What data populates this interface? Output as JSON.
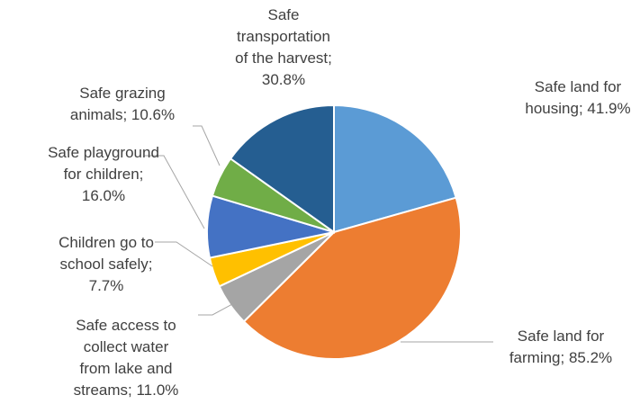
{
  "chart_data": {
    "type": "pie",
    "categories": [
      "Safe land for housing;",
      "Safe land for farming;",
      "Safe access to collect water from lake and streams;",
      "Children go to school safely;",
      "Safe playground for children;",
      "Safe grazing animals;",
      "Safe transportation of the harvest;"
    ],
    "values": [
      41.9,
      85.2,
      11.0,
      7.7,
      16.0,
      10.6,
      30.8
    ],
    "value_labels": [
      "41.9%",
      "85.2%",
      "11.0%",
      "7.7%",
      "16.0%",
      "10.6%",
      "30.8%"
    ],
    "colors": [
      "#5b9bd5",
      "#ed7d31",
      "#a5a5a5",
      "#ffc000",
      "#4472c4",
      "#70ad47",
      "#255e91"
    ]
  }
}
